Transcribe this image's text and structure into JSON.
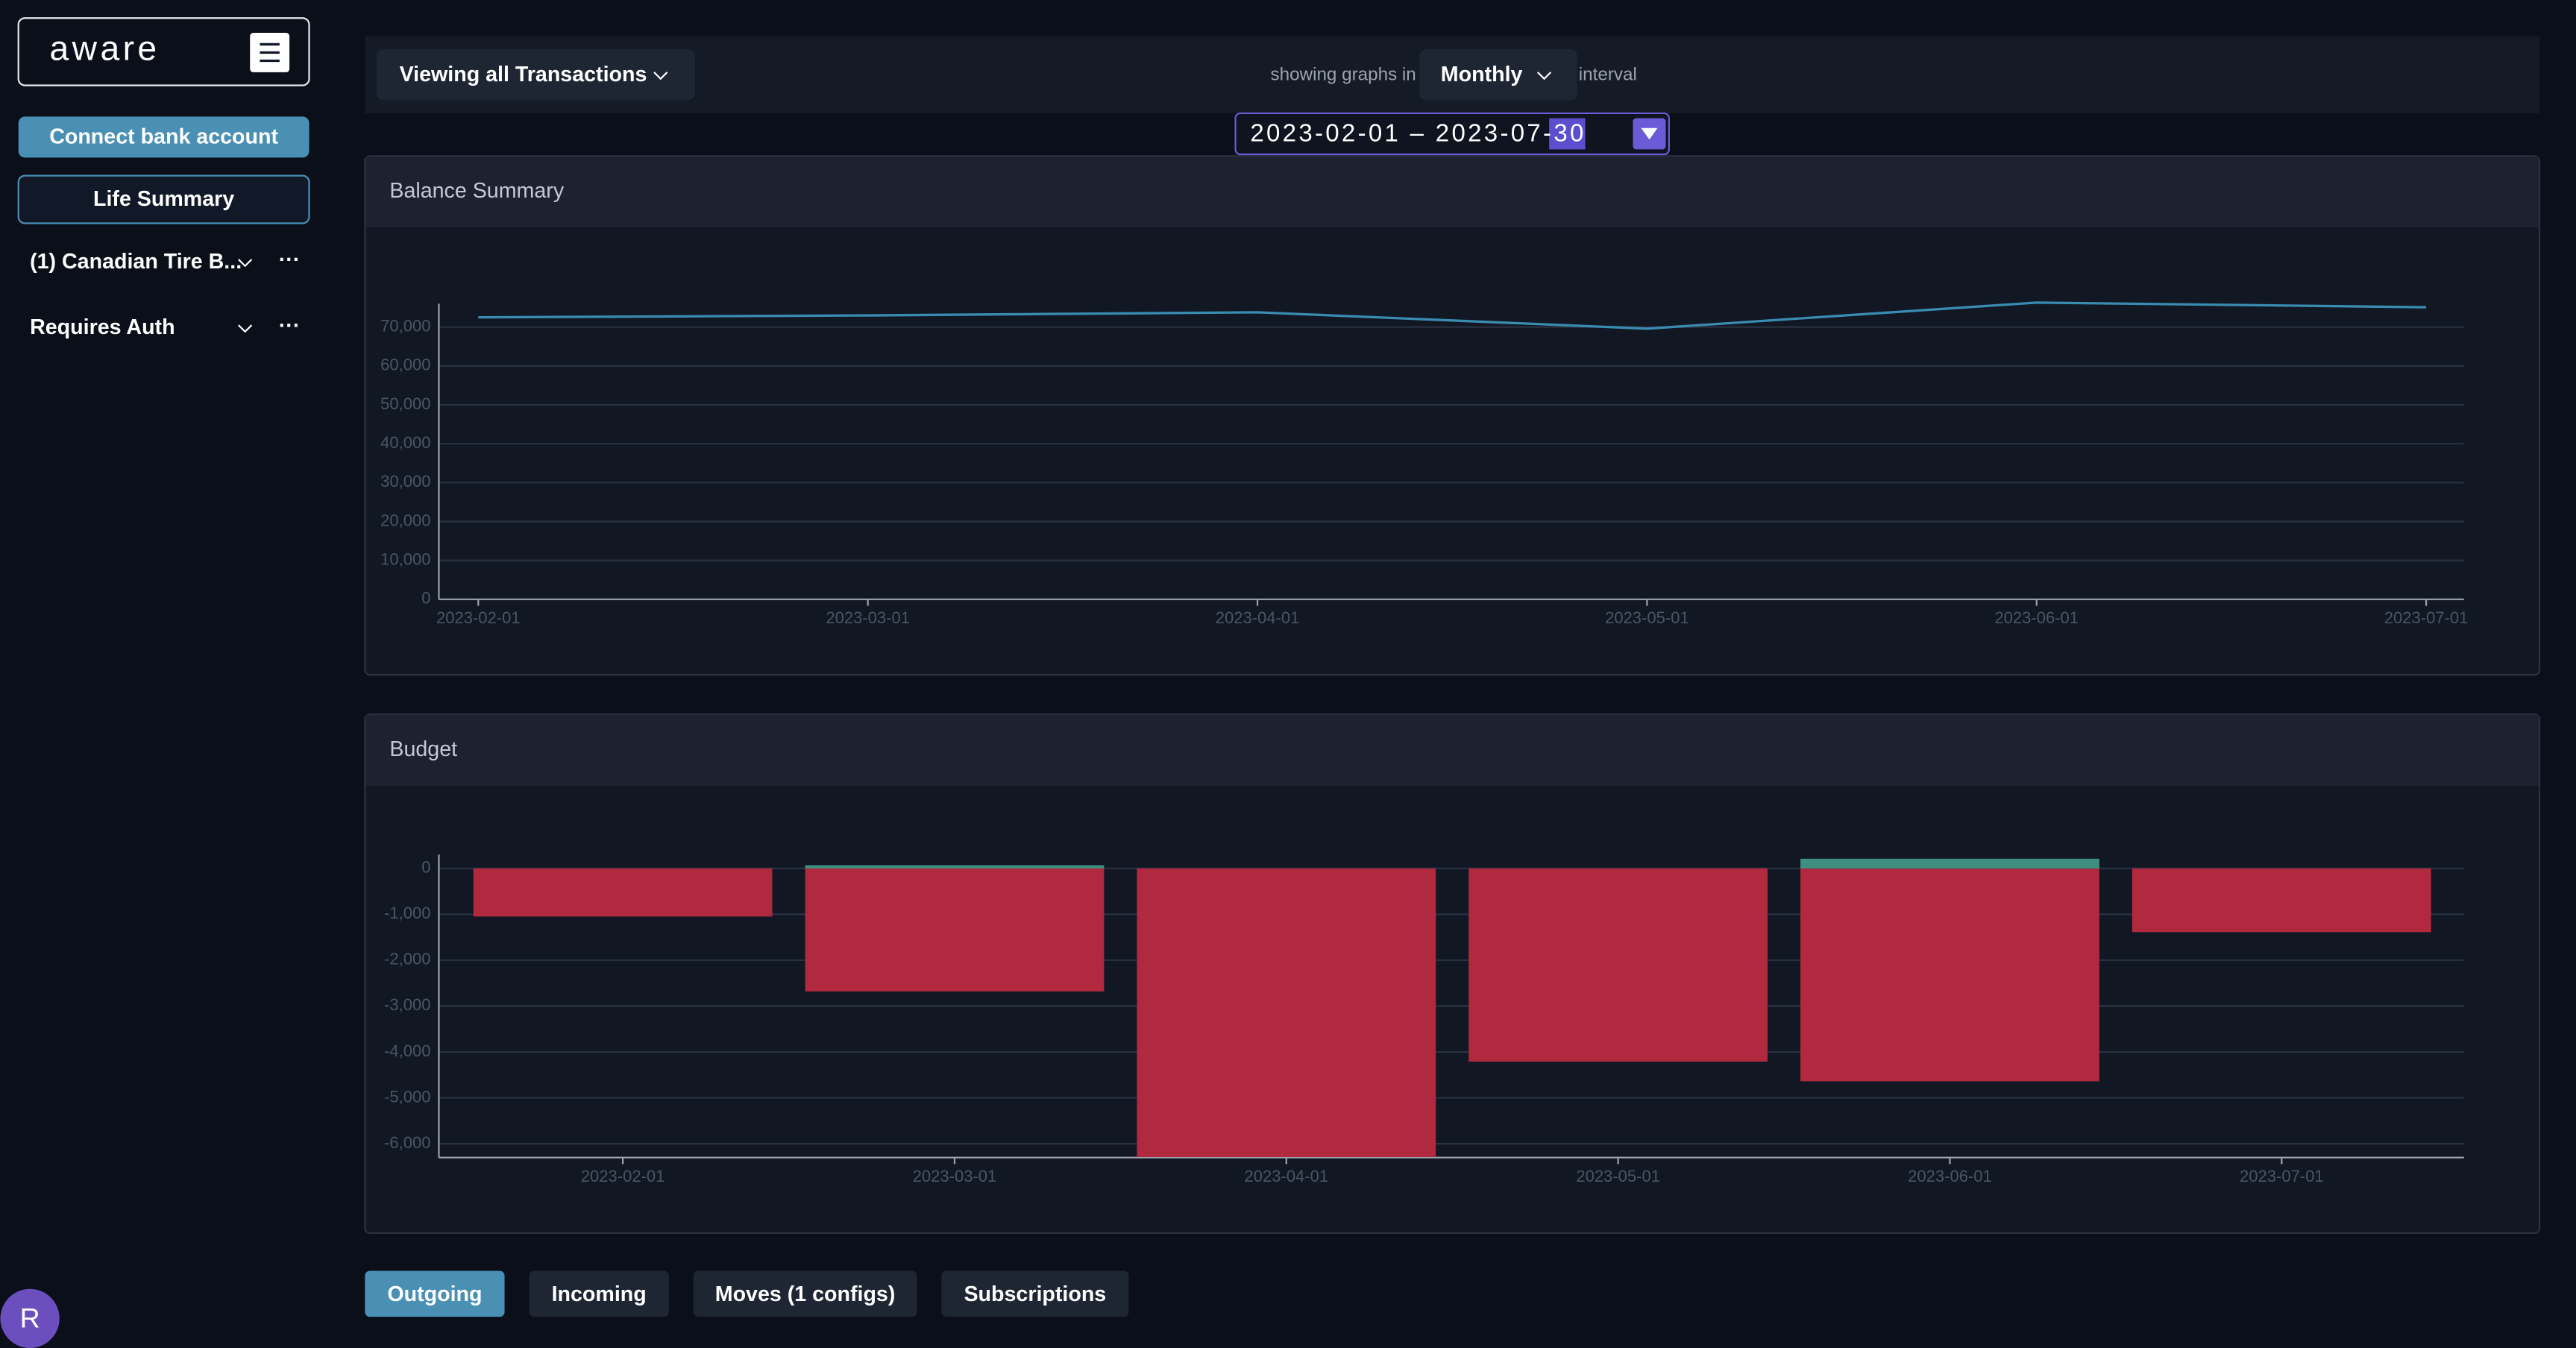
{
  "sidebar": {
    "logo": "aware",
    "connect_button": "Connect bank account",
    "life_summary": "Life Summary",
    "accounts": [
      {
        "name": "(1) Canadian Tire B..."
      },
      {
        "name": "Requires Auth"
      }
    ],
    "avatar": "R"
  },
  "toolbar": {
    "filter": "Viewing all Transactions",
    "interval_prefix": "showing graphs in",
    "interval": "Monthly",
    "interval_suffix": "interval",
    "date_range": "2023-02-01 – 2023-07-30"
  },
  "chart_data": [
    {
      "type": "line",
      "title": "Balance Summary",
      "categories": [
        "2023-02-01",
        "2023-03-01",
        "2023-04-01",
        "2023-05-01",
        "2023-06-01",
        "2023-07-01"
      ],
      "values": [
        72500,
        73000,
        73800,
        69600,
        76300,
        75100
      ],
      "color": "#3a8bb0",
      "ylim": [
        0,
        76000
      ],
      "yticks": [
        0,
        {
          "value": 10000,
          "label": "10,000"
        },
        {
          "value": 20000,
          "label": "20,000"
        },
        {
          "value": 30000,
          "label": "30,000"
        },
        {
          "value": 40000,
          "label": "40,000"
        },
        {
          "value": 50000,
          "label": "50,000"
        },
        {
          "value": 60000,
          "label": "60,000"
        },
        {
          "value": 70000,
          "label": "70,000"
        }
      ],
      "grid": true
    },
    {
      "type": "bar",
      "title": "Budget",
      "categories": [
        "2023-02-01",
        "2023-03-01",
        "2023-04-01",
        "2023-05-01",
        "2023-06-01",
        "2023-07-01"
      ],
      "series": [
        {
          "color": "#b0293f",
          "values": [
            -1050,
            -2680,
            -6290,
            -4210,
            -4640,
            -1390
          ]
        },
        {
          "color": "#3f8f7f",
          "values": [
            0,
            70,
            0,
            0,
            210,
            0
          ]
        }
      ],
      "ylim": [
        -6300,
        300
      ],
      "yticks": [
        {
          "value": -6000,
          "label": "-6,000"
        },
        {
          "value": -5000,
          "label": "-5,000"
        },
        {
          "value": -4000,
          "label": "-4,000"
        },
        {
          "value": -3000,
          "label": "-3,000"
        },
        {
          "value": -2000,
          "label": "-2,000"
        },
        {
          "value": -1000,
          "label": "-1,000"
        },
        0
      ],
      "grid": true
    }
  ],
  "tabs": [
    "Outgoing",
    "Incoming",
    "Moves (1 configs)",
    "Subscriptions"
  ]
}
